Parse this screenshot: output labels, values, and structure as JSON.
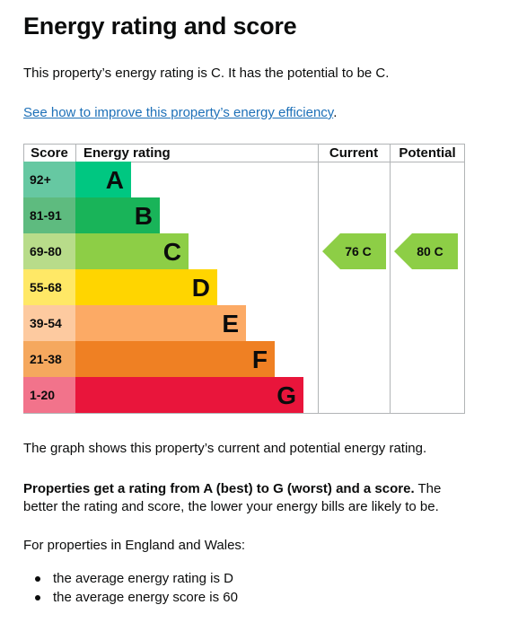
{
  "page": {
    "title": "Energy rating and score",
    "intro": "This property’s energy rating is C. It has the potential to be C.",
    "link_text": "See how to improve this property’s energy efficiency",
    "link_suffix": ".",
    "graph_caption": "The graph shows this property’s current and potential energy rating.",
    "rating_bold": "Properties get a rating from A (best) to G (worst) and a score.",
    "rating_rest": " The better the rating and score, the lower your energy bills are likely to be.",
    "england_wales": "For properties in England and Wales:",
    "bullets": [
      "the average energy rating is D",
      "the average energy score is 60"
    ]
  },
  "chart_data": {
    "type": "bar",
    "headers": {
      "score": "Score",
      "rating": "Energy rating",
      "current": "Current",
      "potential": "Potential"
    },
    "categories": [
      "A",
      "B",
      "C",
      "D",
      "E",
      "F",
      "G"
    ],
    "score_ranges": [
      "92+",
      "81-91",
      "69-80",
      "55-68",
      "39-54",
      "21-38",
      "1-20"
    ],
    "band_colors": [
      "#00c781",
      "#19b459",
      "#8dce46",
      "#ffd500",
      "#fcaa65",
      "#ef8023",
      "#e9153b"
    ],
    "score_cell_colors": [
      "#66c8a2",
      "#5ebb7f",
      "#b8dc8a",
      "#ffe866",
      "#fdcaa0",
      "#f5a85e",
      "#f2738b"
    ],
    "current": {
      "score": 76,
      "band": "C",
      "label": "76 C"
    },
    "potential": {
      "score": 80,
      "band": "C",
      "label": "80 C"
    },
    "marker_color": "#8dce46"
  }
}
